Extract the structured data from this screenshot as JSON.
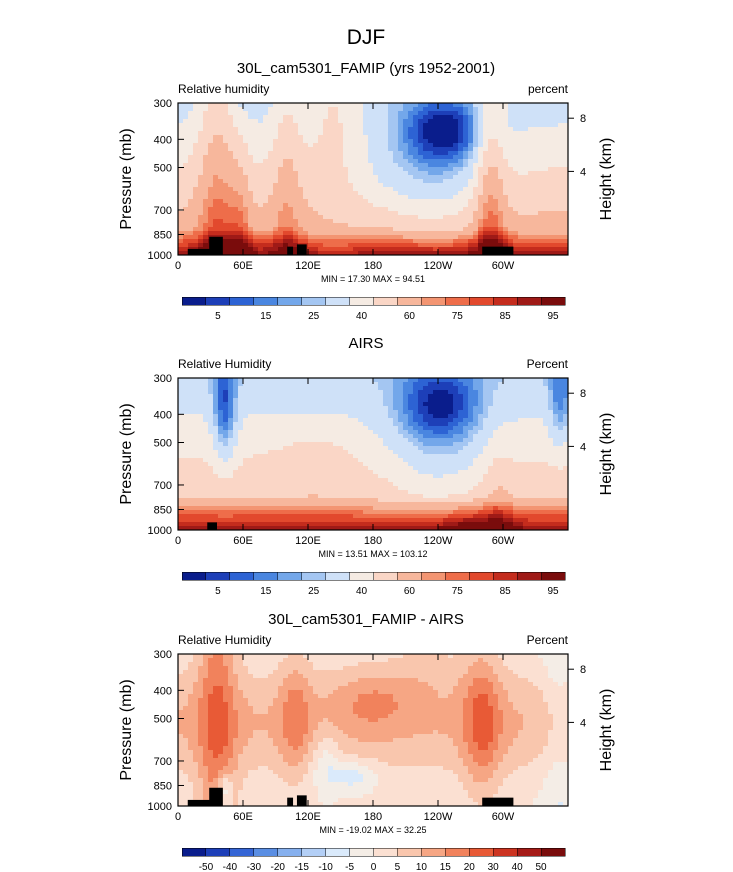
{
  "figure_title": "DJF",
  "chart_data": [
    {
      "type": "heatmap",
      "title": "30L_cam5301_FAMIP (yrs 1952-2001)",
      "left_label": "Relative humidity",
      "right_label": "percent",
      "ylabel": "Pressure (mb)",
      "ylabel_right": "Height (km)",
      "x_ticks": [
        "0",
        "60E",
        "120E",
        "180",
        "120W",
        "60W"
      ],
      "y_ticks": [
        "300",
        "400",
        "500",
        "700",
        "850",
        "1000"
      ],
      "height_ticks": [
        "8",
        "4"
      ],
      "stats": "MIN =  17.30   MAX =  94.51",
      "min": 17.3,
      "max": 94.51,
      "colorbar_labels": [
        "5",
        "15",
        "25",
        "40",
        "60",
        "75",
        "85",
        "95"
      ]
    },
    {
      "type": "heatmap",
      "title": "AIRS",
      "left_label": "Relative Humidity",
      "right_label": "Percent",
      "ylabel": "Pressure (mb)",
      "ylabel_right": "Height (km)",
      "x_ticks": [
        "0",
        "60E",
        "120E",
        "180",
        "120W",
        "60W"
      ],
      "y_ticks": [
        "300",
        "400",
        "500",
        "700",
        "850",
        "1000"
      ],
      "height_ticks": [
        "8",
        "4"
      ],
      "stats": "MIN =  13.51   MAX = 103.12",
      "min": 13.51,
      "max": 103.12,
      "colorbar_labels": [
        "5",
        "15",
        "25",
        "40",
        "60",
        "75",
        "85",
        "95"
      ]
    },
    {
      "type": "heatmap",
      "title": "30L_cam5301_FAMIP - AIRS",
      "left_label": "Relative Humidity",
      "right_label": "Percent",
      "ylabel": "Pressure (mb)",
      "ylabel_right": "Height (km)",
      "x_ticks": [
        "0",
        "60E",
        "120E",
        "180",
        "120W",
        "60W"
      ],
      "y_ticks": [
        "300",
        "400",
        "500",
        "700",
        "850",
        "1000"
      ],
      "height_ticks": [
        "8",
        "4"
      ],
      "stats": "MIN = -19.02   MAX =  32.25",
      "min": -19.02,
      "max": 32.25,
      "colorbar_labels": [
        "-50",
        "-40",
        "-30",
        "-20",
        "-15",
        "-10",
        "-5",
        "0",
        "5",
        "10",
        "15",
        "20",
        "30",
        "40",
        "50"
      ]
    }
  ],
  "colors": {
    "seq": [
      "#0a1d8c",
      "#1d3fb8",
      "#2d63d4",
      "#4a86e0",
      "#73a7ea",
      "#a4c6f2",
      "#cfe1f8",
      "#f5ebe3",
      "#fad6c6",
      "#f7b79c",
      "#f39572",
      "#ee6d4a",
      "#e2492d",
      "#c42c1d",
      "#9f1a17",
      "#7a0c0c"
    ],
    "diff": [
      "#0a1d8c",
      "#1d3fb8",
      "#3565d5",
      "#5a8ee3",
      "#86b0ee",
      "#b3cff6",
      "#daeafb",
      "#f4ede6",
      "#fbe0d2",
      "#f9c6ad",
      "#f6a684",
      "#f1825c",
      "#e85a36",
      "#cc3421",
      "#a51b17",
      "#7a0c0c"
    ],
    "land": "#000000"
  }
}
